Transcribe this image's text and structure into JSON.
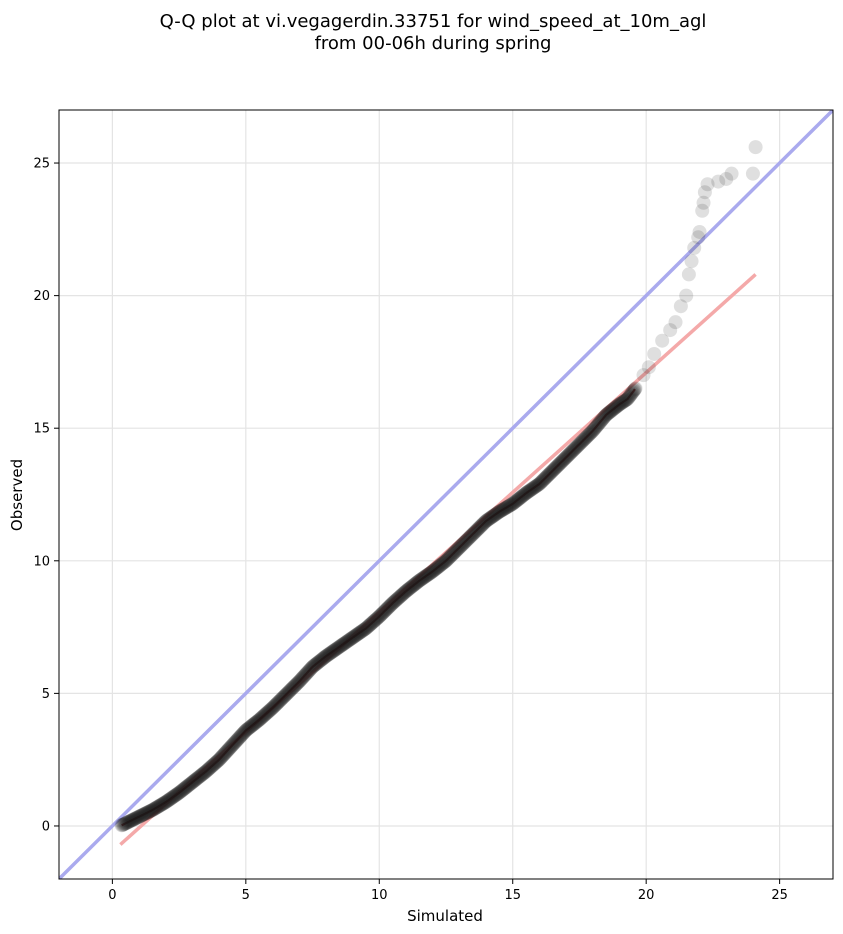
{
  "chart_data": {
    "type": "scatter",
    "title_line1": "Q-Q plot at vi.vegagerdin.33751 for wind_speed_at_10m_agl",
    "title_line2": "from 00-06h during spring",
    "xlabel": "Simulated",
    "ylabel": "Observed",
    "xlim": [
      -2,
      27
    ],
    "ylim": [
      -2,
      27
    ],
    "xticks": [
      0,
      5,
      10,
      15,
      20,
      25
    ],
    "yticks": [
      0,
      5,
      10,
      15,
      20,
      25
    ],
    "xtick_labels": [
      "0",
      "5",
      "10",
      "15",
      "20",
      "25"
    ],
    "ytick_labels": [
      "0",
      "5",
      "10",
      "15",
      "20",
      "25"
    ],
    "grid": true,
    "reference_line": {
      "label": "1:1 line",
      "color": "#aaaaee",
      "points": [
        [
          -2,
          -2
        ],
        [
          27,
          27
        ]
      ]
    },
    "fit_line": {
      "label": "linear fit",
      "color": "#f4a9a9",
      "points": [
        [
          0.3,
          -0.7
        ],
        [
          24.1,
          20.8
        ]
      ]
    },
    "trend_line_color": "#8b1a1a",
    "point_color": "#1a1a1a",
    "anchor_points": [
      [
        0.3,
        0.0
      ],
      [
        0.6,
        0.15
      ],
      [
        1.0,
        0.35
      ],
      [
        1.5,
        0.6
      ],
      [
        2.0,
        0.9
      ],
      [
        2.5,
        1.25
      ],
      [
        3.0,
        1.65
      ],
      [
        3.5,
        2.05
      ],
      [
        4.0,
        2.5
      ],
      [
        4.5,
        3.05
      ],
      [
        5.0,
        3.6
      ],
      [
        5.5,
        4.0
      ],
      [
        6.0,
        4.45
      ],
      [
        6.5,
        4.95
      ],
      [
        7.0,
        5.45
      ],
      [
        7.5,
        6.0
      ],
      [
        8.0,
        6.4
      ],
      [
        8.5,
        6.75
      ],
      [
        9.0,
        7.1
      ],
      [
        9.5,
        7.45
      ],
      [
        10.0,
        7.9
      ],
      [
        10.5,
        8.4
      ],
      [
        11.0,
        8.85
      ],
      [
        11.5,
        9.25
      ],
      [
        12.0,
        9.6
      ],
      [
        12.5,
        10.0
      ],
      [
        13.0,
        10.5
      ],
      [
        13.5,
        11.0
      ],
      [
        14.0,
        11.5
      ],
      [
        14.5,
        11.85
      ],
      [
        15.0,
        12.15
      ],
      [
        15.5,
        12.55
      ],
      [
        16.0,
        12.9
      ],
      [
        16.5,
        13.4
      ],
      [
        17.0,
        13.9
      ],
      [
        17.5,
        14.4
      ],
      [
        18.0,
        14.9
      ],
      [
        18.5,
        15.5
      ],
      [
        19.0,
        15.9
      ],
      [
        19.3,
        16.1
      ],
      [
        19.6,
        16.5
      ],
      [
        19.9,
        17.0
      ],
      [
        20.1,
        17.3
      ],
      [
        20.3,
        17.8
      ],
      [
        20.6,
        18.3
      ],
      [
        20.9,
        18.7
      ],
      [
        21.1,
        19.0
      ],
      [
        21.3,
        19.6
      ],
      [
        21.5,
        20.0
      ],
      [
        21.6,
        20.8
      ],
      [
        21.7,
        21.3
      ],
      [
        21.8,
        21.8
      ],
      [
        21.95,
        22.2
      ],
      [
        22.0,
        22.4
      ],
      [
        22.1,
        23.2
      ],
      [
        22.15,
        23.5
      ],
      [
        22.2,
        23.9
      ],
      [
        22.3,
        24.2
      ],
      [
        22.7,
        24.3
      ],
      [
        23.0,
        24.4
      ],
      [
        23.2,
        24.6
      ],
      [
        24.0,
        24.6
      ],
      [
        24.1,
        25.6
      ]
    ]
  }
}
